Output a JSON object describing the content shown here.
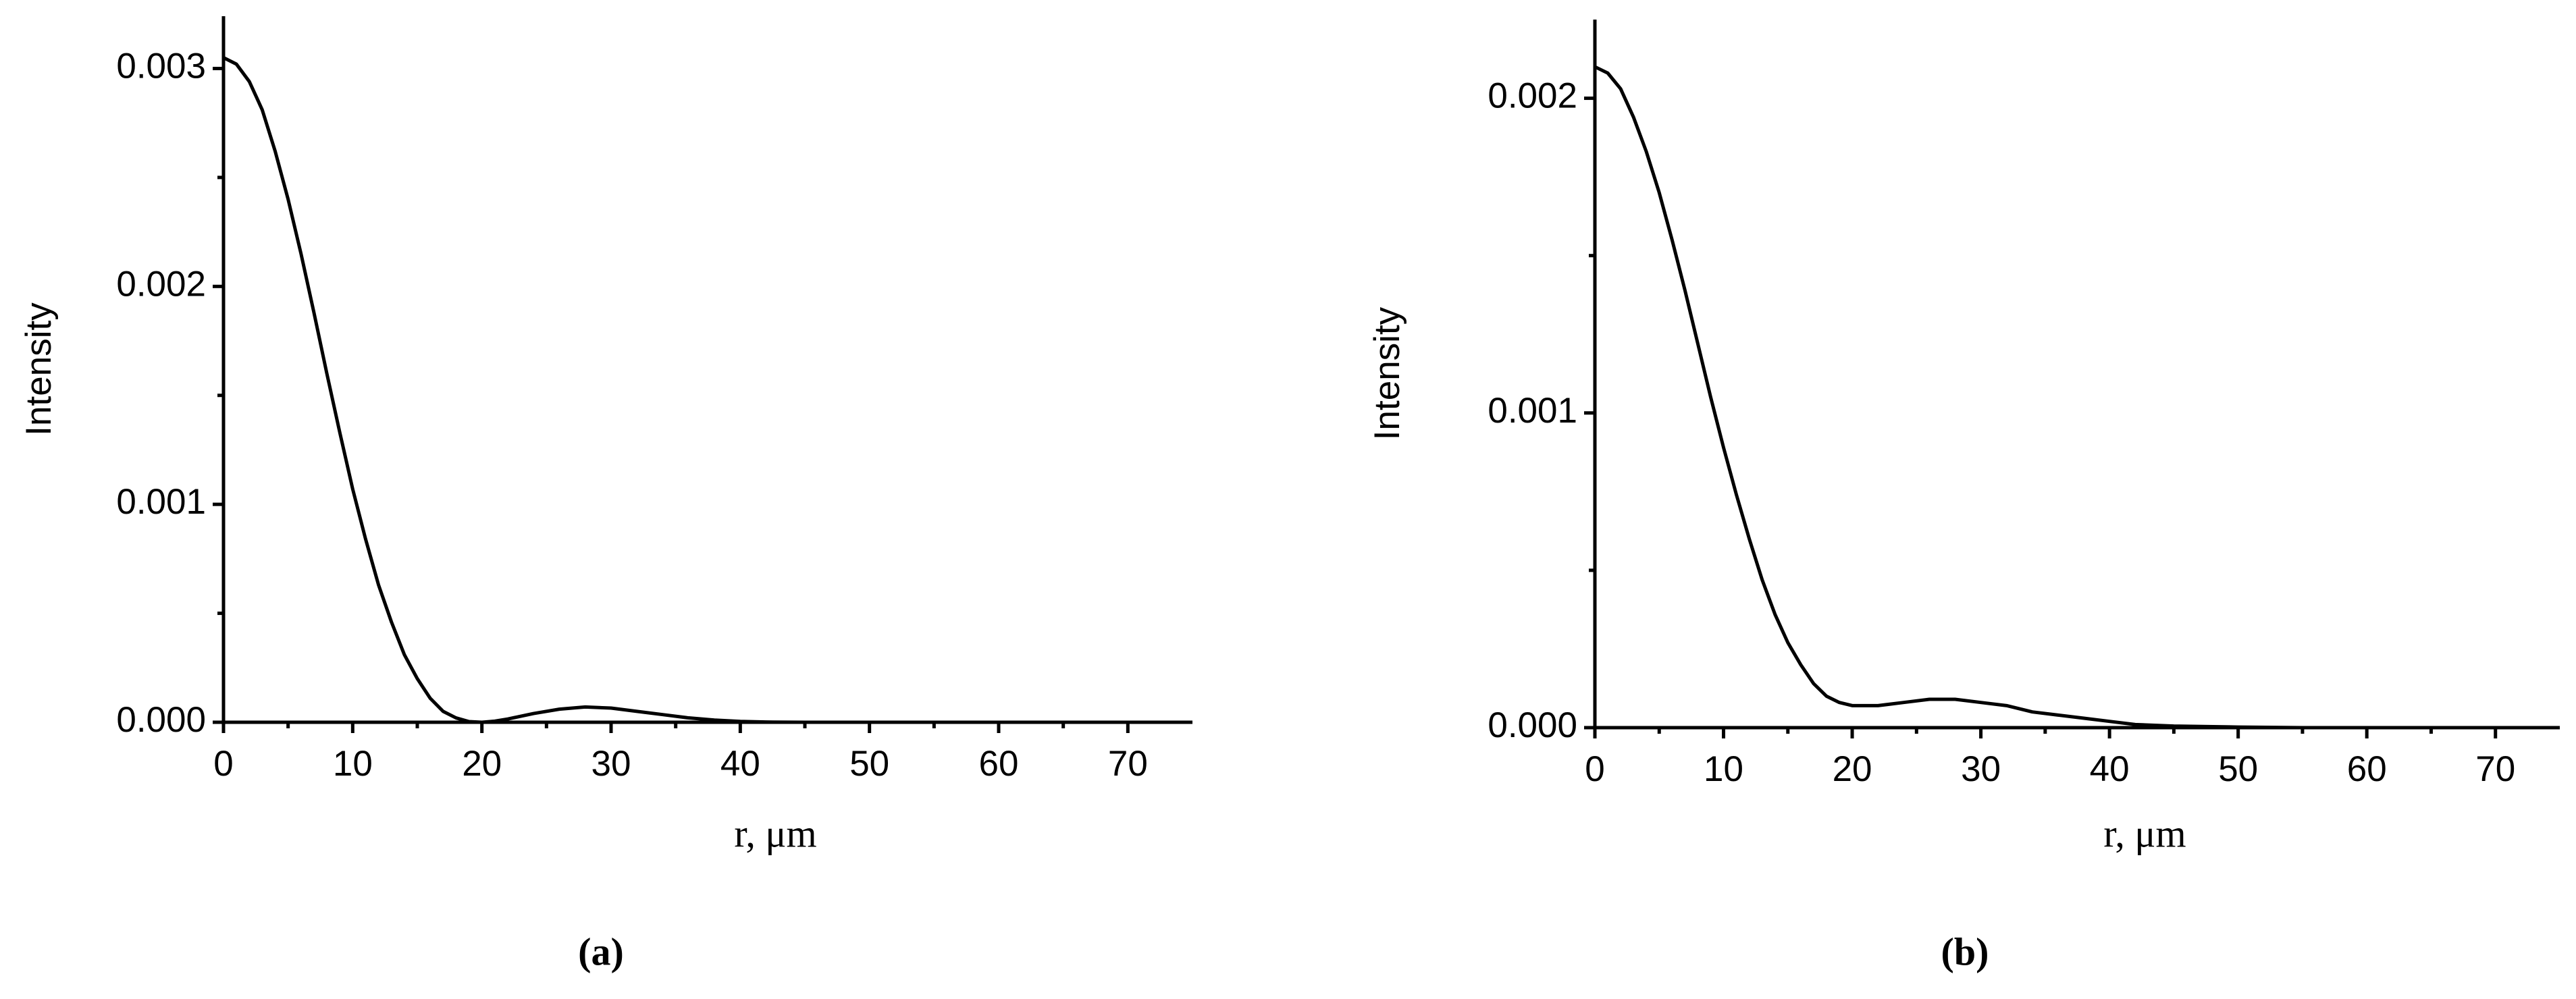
{
  "chart_data": [
    {
      "type": "line",
      "label": "(a)",
      "xlabel": "r, μm",
      "ylabel": "Intensity",
      "x": [
        0,
        1,
        2,
        3,
        4,
        5,
        6,
        7,
        8,
        9,
        10,
        11,
        12,
        13,
        14,
        15,
        16,
        17,
        18,
        19,
        20,
        21,
        22,
        24,
        26,
        28,
        30,
        32,
        34,
        36,
        38,
        40,
        42,
        45,
        50,
        55,
        60,
        65,
        70,
        75
      ],
      "series": [
        {
          "color": "#000000",
          "values": [
            0.00305,
            0.00302,
            0.00294,
            0.00281,
            0.00262,
            0.0024,
            0.00215,
            0.00188,
            0.0016,
            0.00133,
            0.00107,
            0.00084,
            0.00063,
            0.00046,
            0.00031,
            0.0002,
            0.00011,
            5e-05,
            2e-05,
            3e-06,
            0,
            5e-06,
            1.5e-05,
            4e-05,
            6e-05,
            7e-05,
            6.5e-05,
            5e-05,
            3.5e-05,
            2e-05,
            1e-05,
            4e-06,
            1e-06,
            0,
            0,
            0,
            0,
            0,
            0,
            0
          ]
        }
      ],
      "xlim": [
        0,
        75
      ],
      "xticks": [
        0,
        10,
        20,
        30,
        40,
        50,
        60,
        70
      ],
      "ylim": [
        0,
        0.00324
      ],
      "yticks": [
        {
          "value": 0,
          "label": "0.000"
        },
        0.001,
        0.002,
        0.003
      ]
    },
    {
      "type": "line",
      "label": "(b)",
      "xlabel": "r, μm",
      "ylabel": "Intensity",
      "x": [
        0,
        1,
        2,
        3,
        4,
        5,
        6,
        7,
        8,
        9,
        10,
        11,
        12,
        13,
        14,
        15,
        16,
        17,
        18,
        19,
        20,
        22,
        24,
        26,
        28,
        30,
        32,
        34,
        36,
        38,
        40,
        42,
        45,
        50,
        55,
        60
      ],
      "series": [
        {
          "color": "#000000",
          "values": [
            0.0021,
            0.00208,
            0.00203,
            0.00194,
            0.00183,
            0.0017,
            0.00155,
            0.00139,
            0.00122,
            0.00105,
            0.00089,
            0.00074,
            0.0006,
            0.00047,
            0.00036,
            0.00027,
            0.0002,
            0.00014,
            0.0001,
            8e-05,
            7e-05,
            7e-05,
            8e-05,
            9e-05,
            9e-05,
            8e-05,
            7e-05,
            5e-05,
            4e-05,
            3e-05,
            2e-05,
            1e-05,
            5e-06,
            2e-06,
            0,
            0
          ]
        }
      ],
      "xlim": [
        0,
        75
      ],
      "xticks": [
        0,
        10,
        20,
        30,
        40,
        50,
        60,
        70
      ],
      "ylim": [
        0,
        0.00225
      ],
      "yticks": [
        {
          "value": 0,
          "label": "0.000"
        },
        0.001,
        0.002
      ]
    }
  ]
}
